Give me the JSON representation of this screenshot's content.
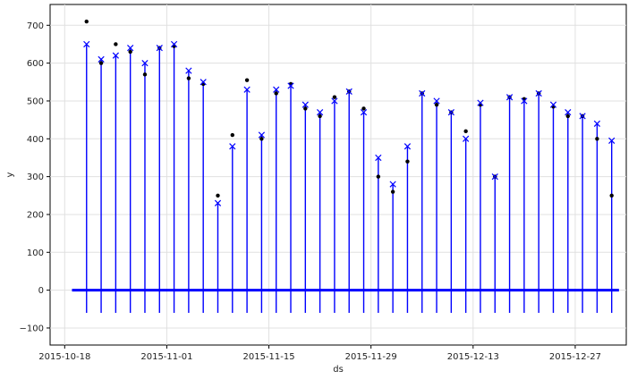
{
  "chart_data": {
    "type": "scatter",
    "title": "",
    "xlabel": "ds",
    "ylabel": "y",
    "x_type": "date",
    "xlim": [
      "2015-10-16",
      "2016-01-03"
    ],
    "ylim": [
      -145,
      755
    ],
    "x_ticks": [
      "2015-10-18",
      "2015-11-01",
      "2015-11-15",
      "2015-11-29",
      "2015-12-13",
      "2015-12-27"
    ],
    "y_ticks": [
      -100,
      0,
      100,
      200,
      300,
      400,
      500,
      600,
      700
    ],
    "grid": true,
    "legend": "none",
    "series": [
      {
        "style": "black dots",
        "color": "#000000",
        "x": [
          "2015-10-21",
          "2015-10-23",
          "2015-10-25",
          "2015-10-27",
          "2015-10-29",
          "2015-10-31",
          "2015-11-02",
          "2015-11-04",
          "2015-11-06",
          "2015-11-08",
          "2015-11-10",
          "2015-11-12",
          "2015-11-14",
          "2015-11-16",
          "2015-11-18",
          "2015-11-20",
          "2015-11-22",
          "2015-11-24",
          "2015-11-26",
          "2015-11-28",
          "2015-11-30",
          "2015-12-02",
          "2015-12-04",
          "2015-12-06",
          "2015-12-08",
          "2015-12-10",
          "2015-12-12",
          "2015-12-14",
          "2015-12-16",
          "2015-12-18",
          "2015-12-20",
          "2015-12-22",
          "2015-12-24",
          "2015-12-26",
          "2015-12-28",
          "2015-12-30",
          "2016-01-01"
        ],
        "y": [
          710,
          600,
          650,
          630,
          570,
          640,
          645,
          560,
          545,
          250,
          410,
          555,
          400,
          520,
          545,
          480,
          460,
          510,
          525,
          480,
          300,
          260,
          340,
          520,
          490,
          470,
          420,
          490,
          300,
          510,
          505,
          520,
          485,
          460,
          460,
          400,
          250
        ]
      },
      {
        "style": "blue x line",
        "color": "#0000ff",
        "x": [
          "2015-10-21",
          "2015-10-23",
          "2015-10-25",
          "2015-10-27",
          "2015-10-29",
          "2015-10-31",
          "2015-11-02",
          "2015-11-04",
          "2015-11-06",
          "2015-11-08",
          "2015-11-10",
          "2015-11-12",
          "2015-11-14",
          "2015-11-16",
          "2015-11-18",
          "2015-11-20",
          "2015-11-22",
          "2015-11-24",
          "2015-11-26",
          "2015-11-28",
          "2015-11-30",
          "2015-12-02",
          "2015-12-04",
          "2015-12-06",
          "2015-12-08",
          "2015-12-10",
          "2015-12-12",
          "2015-12-14",
          "2015-12-16",
          "2015-12-18",
          "2015-12-20",
          "2015-12-22",
          "2015-12-24",
          "2015-12-26",
          "2015-12-28",
          "2015-12-30",
          "2016-01-01"
        ],
        "y": [
          650,
          610,
          620,
          640,
          600,
          640,
          650,
          580,
          550,
          230,
          380,
          530,
          410,
          530,
          540,
          490,
          470,
          500,
          525,
          470,
          350,
          280,
          380,
          520,
          500,
          470,
          400,
          495,
          300,
          510,
          500,
          520,
          490,
          470,
          460,
          440,
          395
        ]
      }
    ]
  }
}
